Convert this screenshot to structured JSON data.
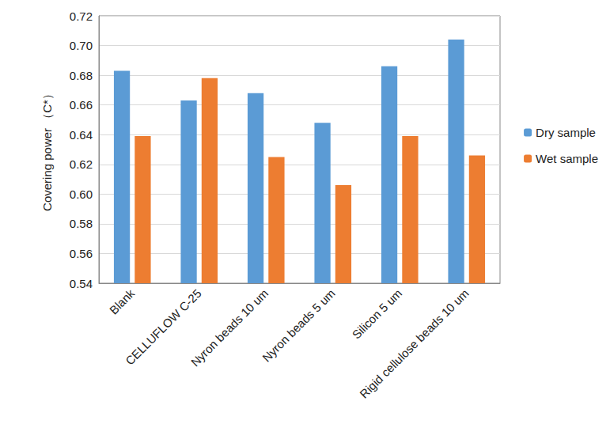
{
  "chart_data": {
    "type": "bar",
    "y_label": "Covering power （C*）",
    "categories": [
      "Blank",
      "CELLUFLOW C-25",
      "Nyron beads 10 um",
      "Nyron beads 5 um",
      "Silicon 5 um",
      "Rigid cellulose beads 10 um"
    ],
    "series": [
      {
        "name": "Dry sample",
        "color": "#5b9bd5",
        "values": [
          0.683,
          0.663,
          0.668,
          0.648,
          0.686,
          0.704
        ]
      },
      {
        "name": "Wet sample",
        "color": "#ed7d31",
        "values": [
          0.639,
          0.678,
          0.625,
          0.606,
          0.639,
          0.626
        ]
      }
    ],
    "ylim": [
      0.54,
      0.72
    ],
    "yticks": [
      0.54,
      0.56,
      0.58,
      {
        "value": 0.6,
        "label": "0.60"
      },
      0.62,
      0.64,
      0.66,
      0.68,
      {
        "value": 0.7,
        "label": "0.70"
      },
      0.72
    ],
    "grid": true,
    "legend": "right"
  }
}
